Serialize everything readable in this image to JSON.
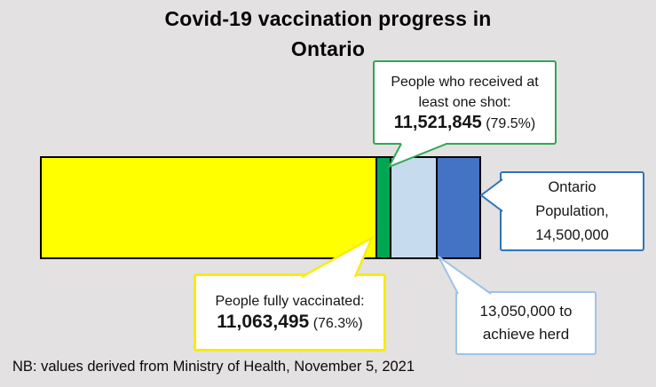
{
  "title": {
    "line1": "Covid-19 vaccination progress in",
    "line2": "Ontario"
  },
  "callouts": {
    "one_shot": {
      "line1": "People who received at",
      "line2": "least one shot:",
      "value": "11,521,845",
      "pct": "(79.5%)"
    },
    "fully": {
      "line1": "People fully vaccinated:",
      "value": "11,063,495",
      "pct": "(76.3%)"
    },
    "population": {
      "line1": "Ontario",
      "line2": "Population,",
      "line3": "14,500,000"
    },
    "herd": {
      "line1": "13,050,000 to",
      "line2": "achieve herd"
    }
  },
  "note": "NB: values derived from Ministry of Health, November 5, 2021",
  "colors": {
    "background": "#E3E1E1",
    "bar_outline": "#000000",
    "bar_yellow": "#FFFF00",
    "bar_green": "#00A651",
    "bar_light_blue": "#C6DBEE",
    "bar_dark_blue": "#4472C4",
    "border_green": "#2EA853",
    "border_yellow": "#F7EC0F",
    "border_blue": "#2E75B6",
    "border_light_blue": "#9DC3E6"
  },
  "chart_data": {
    "type": "bar",
    "orientation": "horizontal-stacked",
    "title": "Covid-19 vaccination progress in Ontario",
    "total_population": 14500000,
    "segments": [
      {
        "label": "People fully vaccinated",
        "cumulative_value": 11063495,
        "percent_cumulative": 76.3,
        "color": "#FFFF00"
      },
      {
        "label": "People who received at least one shot",
        "cumulative_value": 11521845,
        "percent_cumulative": 79.5,
        "color": "#00A651"
      },
      {
        "label": "To achieve herd immunity",
        "cumulative_value": 13050000,
        "percent_cumulative": 90.0,
        "color": "#C6DBEE"
      },
      {
        "label": "Ontario Population",
        "cumulative_value": 14500000,
        "percent_cumulative": 100.0,
        "color": "#4472C4"
      }
    ],
    "annotations": [
      "People who received at least one shot: 11,521,845 (79.5%)",
      "People fully vaccinated: 11,063,495 (76.3%)",
      "Ontario Population, 14,500,000",
      "13,050,000 to achieve herd"
    ],
    "source_note": "NB: values derived from Ministry of Health, November 5, 2021"
  }
}
